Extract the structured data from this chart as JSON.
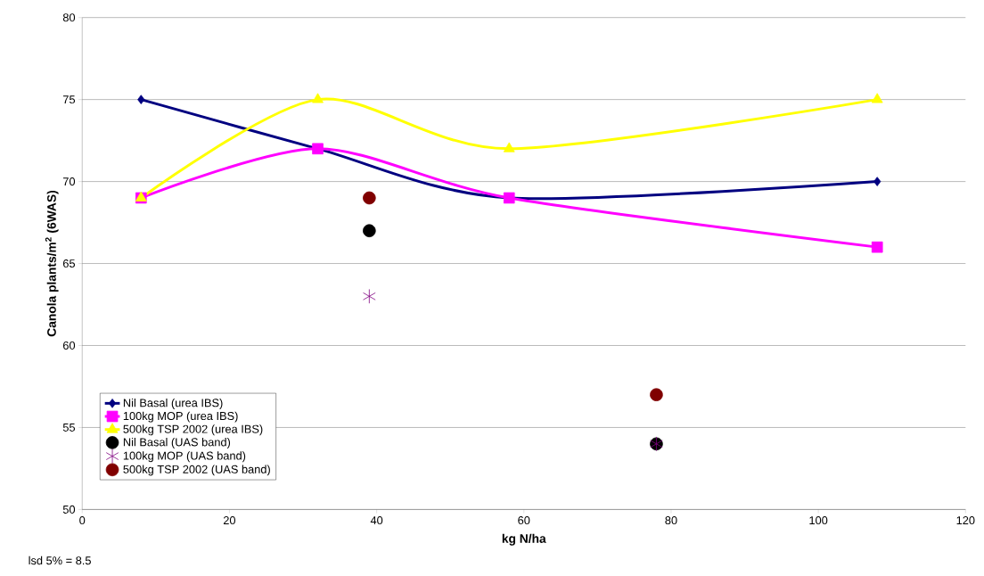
{
  "chart_data": {
    "type": "line",
    "xlabel": "kg N/ha",
    "ylabel": "Canola plants/m$^{2}$ (6WAS)",
    "xlim": [
      0,
      120
    ],
    "xticks": [
      0,
      20,
      40,
      60,
      80,
      100,
      120
    ],
    "ylim": [
      50,
      80
    ],
    "yticks": [
      50,
      55,
      60,
      65,
      70,
      75,
      80
    ],
    "grid": "y",
    "legend": "bottom left",
    "series": [
      {
        "name": "Nil Basal (urea IBS)",
        "color": "#000080",
        "marker": "diamond",
        "x": [
          8,
          32,
          58,
          108
        ],
        "values": [
          75,
          72,
          69,
          70
        ]
      },
      {
        "name": "100kg MOP (urea IBS)",
        "color": "#ff00ff",
        "marker": "square",
        "x": [
          8,
          32,
          58,
          108
        ],
        "values": [
          69,
          72,
          69,
          66
        ]
      },
      {
        "name": "500kg TSP 2002 (urea IBS)",
        "color": "#ffff00",
        "marker": "triangle",
        "x": [
          8,
          32,
          58,
          108
        ],
        "values": [
          69,
          75,
          72,
          75
        ]
      },
      {
        "name": "Nil Basal (UAS band)",
        "type": "scatter",
        "color": "#000000",
        "marker": "circle",
        "x": [
          39,
          78
        ],
        "values": [
          67,
          54
        ]
      },
      {
        "name": "100kg MOP (UAS band)",
        "type": "scatter",
        "color": "#800080",
        "marker": "cross",
        "x": [
          39,
          78
        ],
        "values": [
          63,
          54
        ]
      },
      {
        "name": "500kg TSP 2002 (UAS band)",
        "type": "scatter",
        "color": "#800000",
        "marker": "circle",
        "x": [
          39,
          78
        ],
        "values": [
          69,
          57
        ]
      }
    ],
    "annotations": [
      "lsd 5% = 8.5"
    ]
  }
}
